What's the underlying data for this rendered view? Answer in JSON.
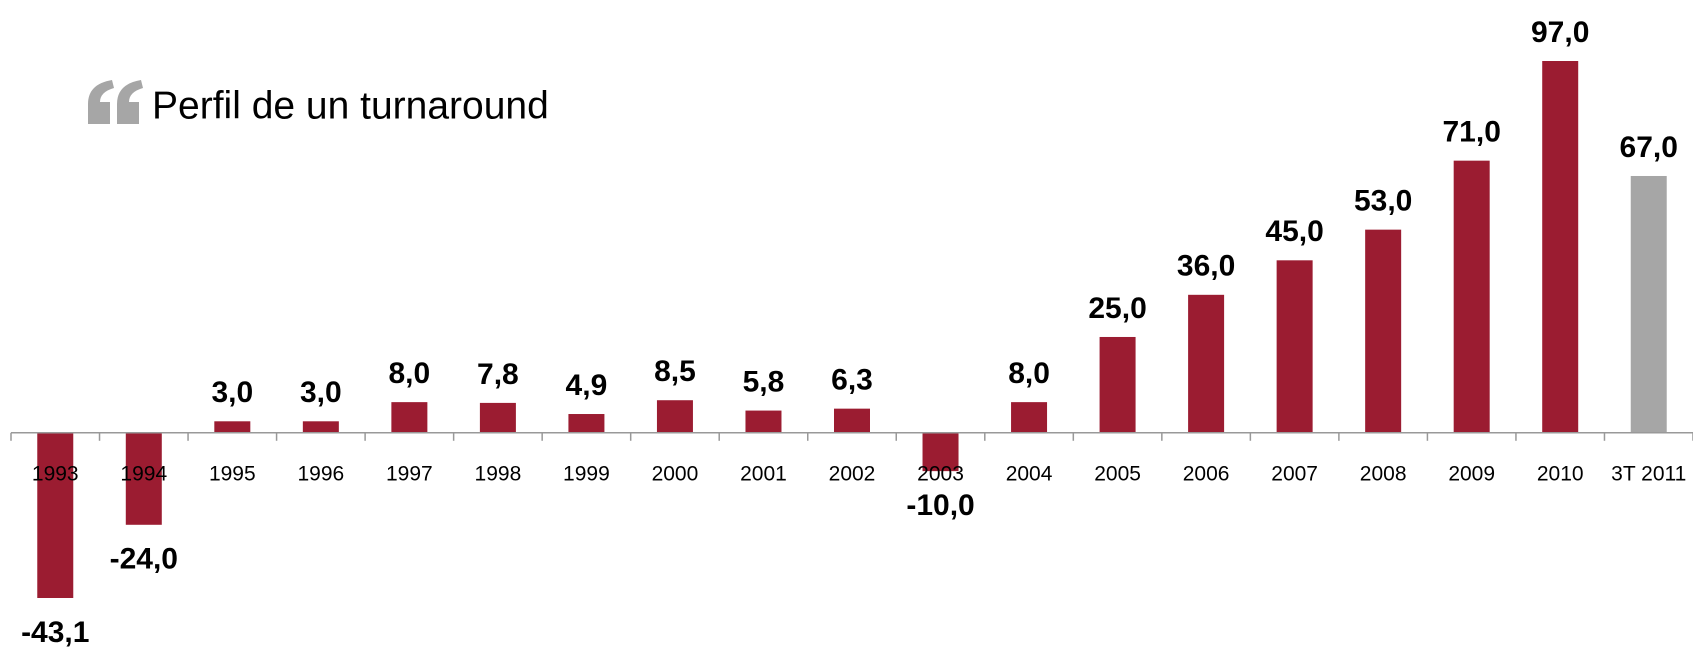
{
  "chart_data": {
    "type": "bar",
    "title": "Perfil de un turnaround",
    "categories": [
      "1993",
      "1994",
      "1995",
      "1996",
      "1997",
      "1998",
      "1999",
      "2000",
      "2001",
      "2002",
      "2003",
      "2004",
      "2005",
      "2006",
      "2007",
      "2008",
      "2009",
      "2010",
      "3T 2011"
    ],
    "values": [
      -43.1,
      -24,
      3,
      3,
      8,
      7.8,
      4.9,
      8.5,
      5.8,
      6.3,
      -10,
      8,
      25,
      36,
      45,
      53,
      71,
      97,
      67
    ],
    "value_labels": [
      "-43,1",
      "-24,0",
      "3,0",
      "3,0",
      "8,0",
      "7,8",
      "4,9",
      "8,5",
      "5,8",
      "6,3",
      "-10,0",
      "8,0",
      "25,0",
      "36,0",
      "45,0",
      "53,0",
      "71,0",
      "97,0",
      "67,0"
    ],
    "colors": [
      "#9b1c31",
      "#9b1c31",
      "#9b1c31",
      "#9b1c31",
      "#9b1c31",
      "#9b1c31",
      "#9b1c31",
      "#9b1c31",
      "#9b1c31",
      "#9b1c31",
      "#9b1c31",
      "#9b1c31",
      "#9b1c31",
      "#9b1c31",
      "#9b1c31",
      "#9b1c31",
      "#9b1c31",
      "#9b1c31",
      "#a6a6a6"
    ]
  }
}
